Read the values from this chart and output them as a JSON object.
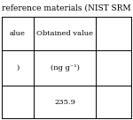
{
  "title": "reference materials (NIST SRM",
  "col1_header": "alue",
  "col2_header": "Obtained value",
  "col3_header": "",
  "col1_unit": ")",
  "col2_unit": "(ng g⁻¹)",
  "col3_unit": "",
  "col1_val": "",
  "col2_val": "235.9",
  "col3_val": "",
  "bg_color": "#ffffff",
  "line_color": "#000000",
  "text_color": "#000000",
  "title_fontsize": 6.5,
  "cell_fontsize": 6.0,
  "unit_fontsize": 6.0
}
